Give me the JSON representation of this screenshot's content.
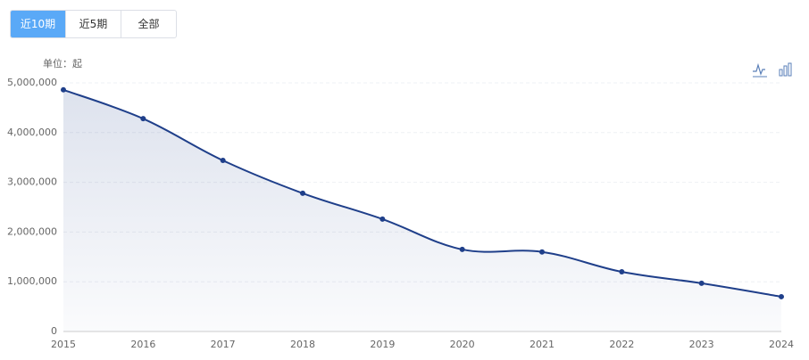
{
  "ui": {
    "tabs": [
      "近10期",
      "近5期",
      "全部"
    ],
    "active_tab": 0
  },
  "chart_data": {
    "type": "line",
    "unit_label": "单位：起",
    "categories": [
      "2015",
      "2016",
      "2017",
      "2018",
      "2019",
      "2020",
      "2021",
      "2022",
      "2023",
      "2024"
    ],
    "values": [
      4860000,
      4280000,
      3440000,
      2780000,
      2260000,
      1650000,
      1600000,
      1200000,
      970000,
      700000
    ],
    "color": "#1f3f8a",
    "ylim": [
      0,
      5000000
    ],
    "yticks": [
      0,
      {
        "value": 1000000,
        "label": "1,000,000"
      },
      {
        "value": 2000000,
        "label": "2,000,000"
      },
      {
        "value": 3000000,
        "label": "3,000,000"
      },
      {
        "value": 4000000,
        "label": "4,000,000"
      },
      {
        "value": 5000000,
        "label": "5,000,000"
      }
    ],
    "grid": true,
    "smooth": true,
    "area": true
  }
}
